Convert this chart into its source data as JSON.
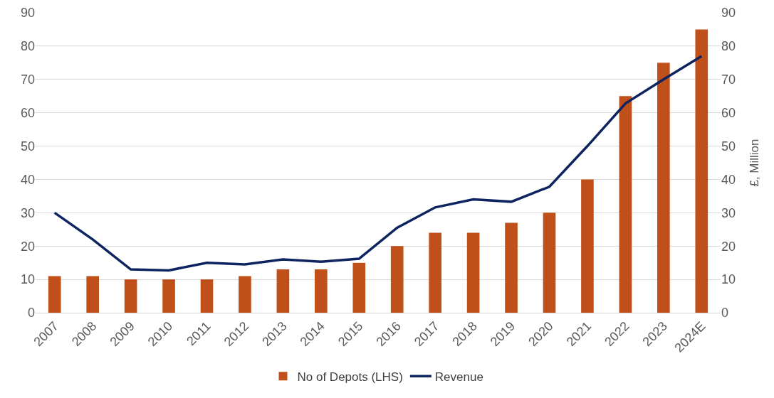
{
  "chart_data": {
    "type": "bar",
    "categories": [
      "2007",
      "2008",
      "2009",
      "2010",
      "2011",
      "2012",
      "2013",
      "2014",
      "2015",
      "2016",
      "2017",
      "2018",
      "2019",
      "2020",
      "2021",
      "2022",
      "2023",
      "2024E"
    ],
    "series": [
      {
        "name": "No of Depots (LHS)",
        "color": "#c0501a",
        "values": [
          11,
          11,
          10,
          10,
          10,
          11,
          13,
          13,
          15,
          20,
          24,
          24,
          27,
          30,
          40,
          65,
          75,
          85
        ]
      },
      {
        "name": "Revenue",
        "type": "line",
        "axis": "y2",
        "color": "#0d2461",
        "values": [
          30,
          22,
          13,
          12.7,
          15,
          14.5,
          16,
          15.3,
          16.2,
          25.5,
          31.6,
          34,
          33.3,
          37.8,
          50,
          62.8,
          70,
          77
        ]
      }
    ],
    "y2label": "£, Million",
    "ylim": [
      0,
      90
    ],
    "yticks": [
      0,
      10,
      20,
      30,
      40,
      50,
      60,
      70,
      80,
      90
    ],
    "y2lim": [
      0,
      90
    ],
    "y2ticks": [
      0,
      10,
      20,
      30,
      40,
      50,
      60,
      70,
      80,
      90
    ],
    "grid": "y",
    "legend": "bottom",
    "marker": "none",
    "line_style": "solid"
  }
}
